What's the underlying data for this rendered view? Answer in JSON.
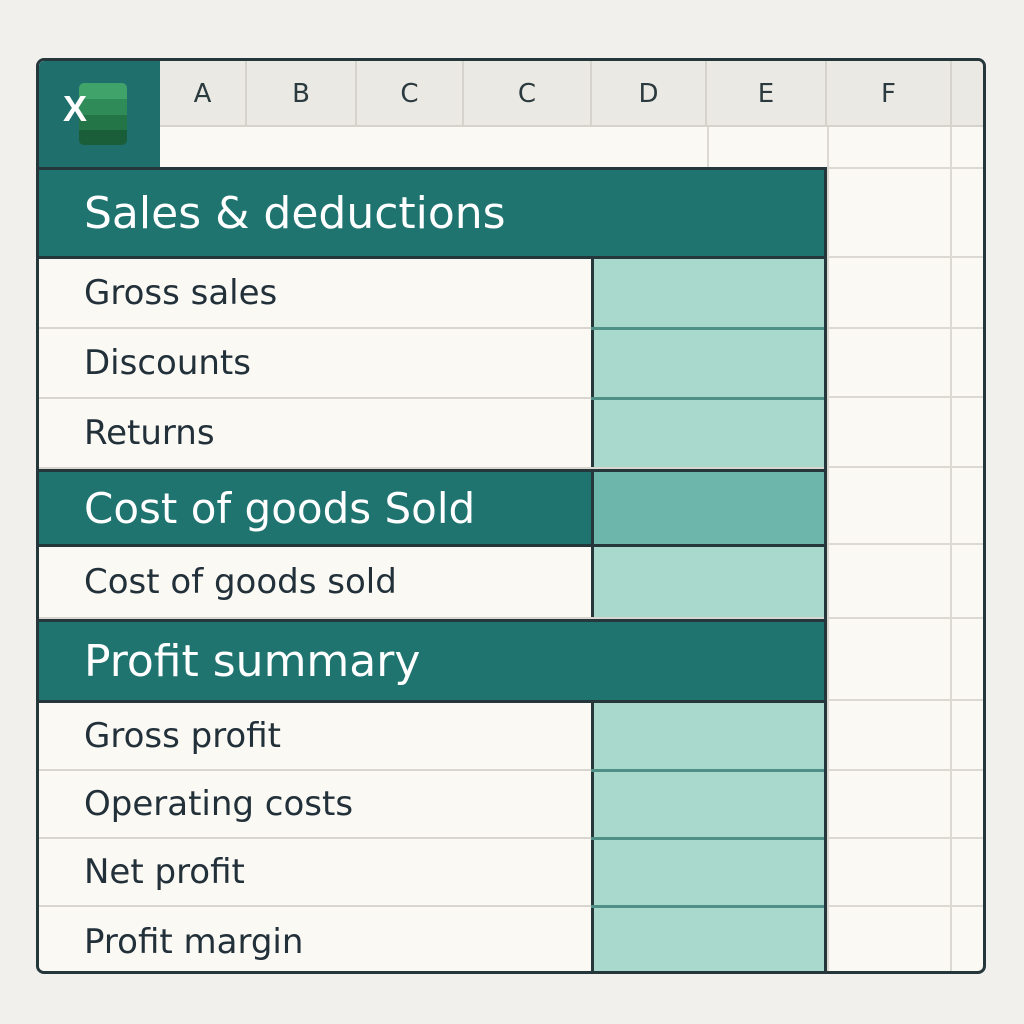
{
  "app": {
    "logo_letter": "X",
    "logo_name": "excel-icon"
  },
  "columns": [
    "A",
    "B",
    "C",
    "C",
    "D",
    "E",
    "F"
  ],
  "sections": [
    {
      "title": "Sales & deductions",
      "items": [
        "Gross sales",
        "Discounts",
        "Returns"
      ]
    },
    {
      "title": "Cost of goods Sold",
      "items": [
        "Cost of goods sold"
      ]
    },
    {
      "title": "Profit summary",
      "items": [
        "Gross profit",
        "Operating costs",
        "Net profit",
        "Profit margin"
      ]
    }
  ],
  "colors": {
    "header_teal": "#1f7470",
    "value_fill": "#a9d8cc",
    "value_fill_dark": "#6db6ab",
    "border": "#26373b"
  }
}
